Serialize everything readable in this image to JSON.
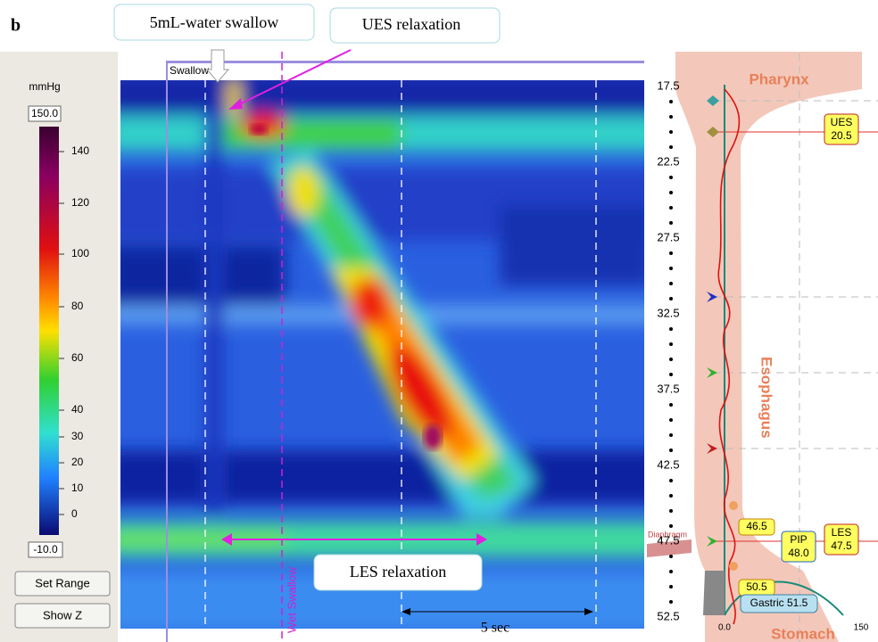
{
  "panel_label": "b",
  "callouts": {
    "swallow": "5mL-water swallow",
    "ues": "UES relaxation",
    "les": "LES relaxation"
  },
  "colorbar": {
    "unit": "mmHg",
    "max": "150.0",
    "min": "-10.0",
    "ticks": [
      "140",
      "120",
      "100",
      "80",
      "60",
      "40",
      "30",
      "20",
      "10",
      "0"
    ]
  },
  "buttons": [
    "Set Range",
    "Show Z"
  ],
  "plot": {
    "swallow_label": "Swallow 9",
    "wet_swallow": "Wet Swallow",
    "time_scale": "5 sec"
  },
  "depth_ticks": [
    "17.5",
    "22.5",
    "27.5",
    "32.5",
    "37.5",
    "42.5",
    "47.5",
    "52.5"
  ],
  "anatomy": {
    "pharynx": "Pharynx",
    "esophagus": "Esophagus",
    "stomach": "Stomach",
    "diaphragm": "Diaphragm"
  },
  "markers": {
    "ues": [
      "UES",
      "20.5"
    ],
    "les": [
      "LES",
      "47.5"
    ],
    "pip": [
      "PIP",
      "48.0"
    ],
    "upper": "46.5",
    "lower": "50.5",
    "gastric": "Gastric 51.5"
  },
  "bottom_axis": [
    "0.0",
    "150"
  ]
}
